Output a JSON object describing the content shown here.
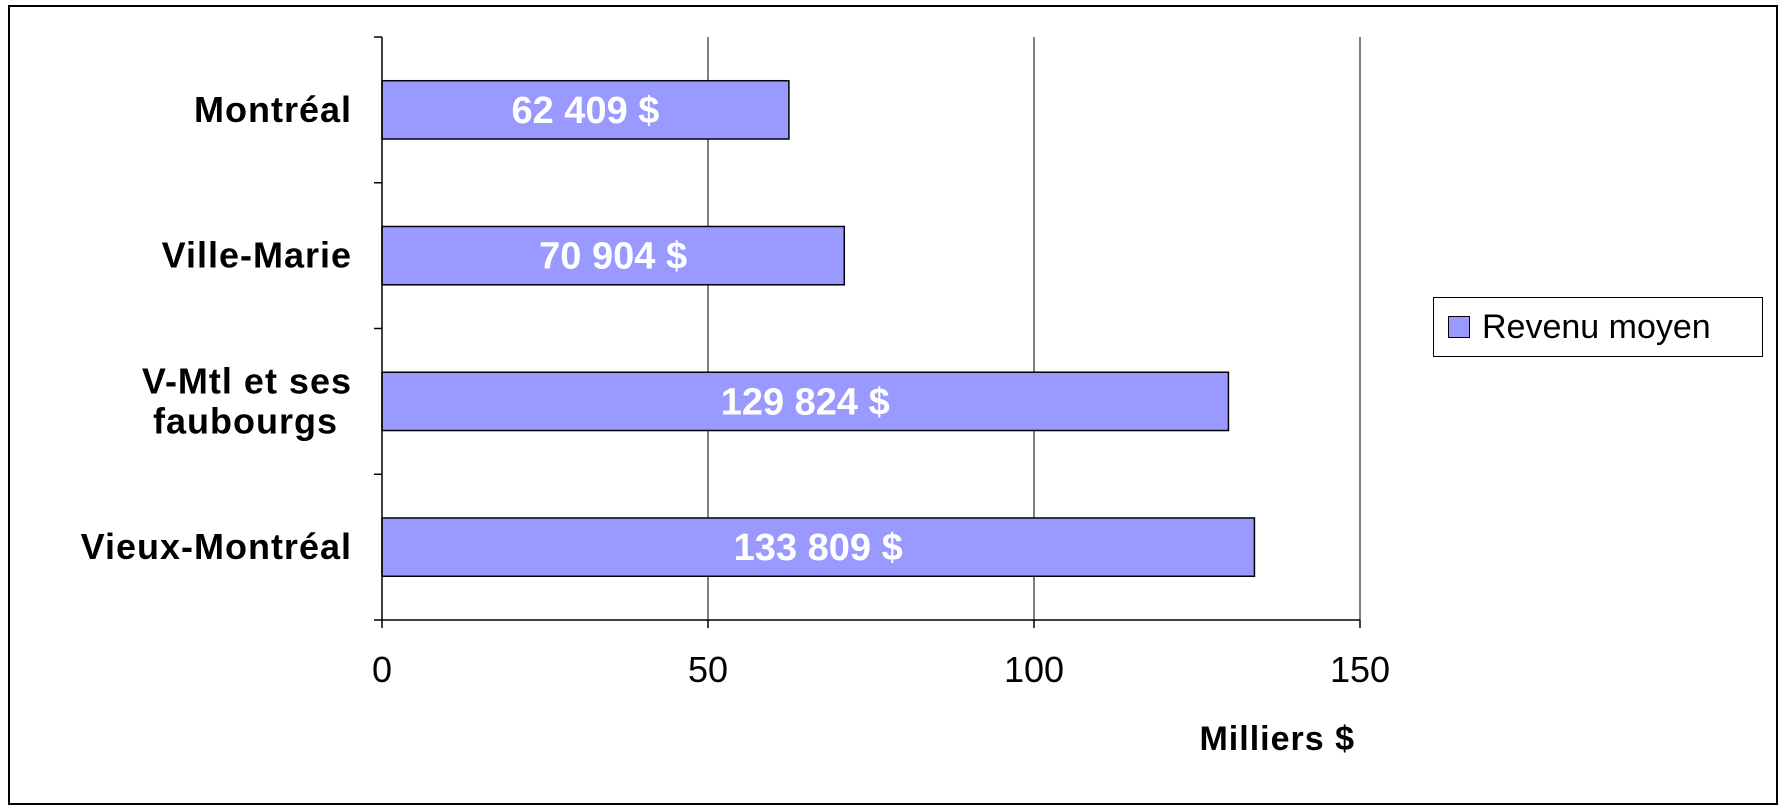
{
  "chart_data": {
    "type": "bar",
    "orientation": "horizontal",
    "categories": [
      "Montréal",
      "Ville-Marie",
      "V-Mtl et ses faubourgs",
      "Vieux-Montréal"
    ],
    "category_lines": [
      [
        "Montréal"
      ],
      [
        "Ville-Marie"
      ],
      [
        "V-Mtl et ses",
        "faubourgs"
      ],
      [
        "Vieux-Montréal"
      ]
    ],
    "series": [
      {
        "name": "Revenu moyen",
        "values": [
          62.409,
          70.904,
          129.824,
          133.809
        ],
        "color": "#9999ff"
      }
    ],
    "data_labels": [
      "62 409 $",
      "70 904 $",
      "129 824 $",
      "133 809 $"
    ],
    "xlabel": "Milliers $",
    "xlim": [
      0,
      150
    ],
    "xticks": [
      "0",
      "50",
      "100",
      "150"
    ],
    "grid": "vertical",
    "legend": "right"
  }
}
